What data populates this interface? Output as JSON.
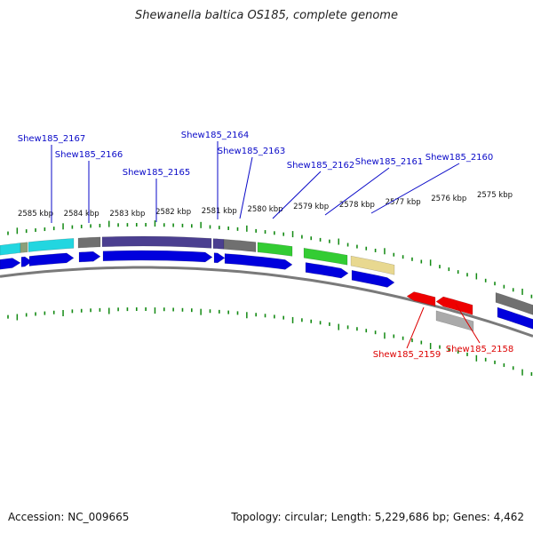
{
  "title": "Shewanella baltica OS185, complete genome",
  "footer": {
    "accession": "Accession: NC_009665",
    "stats": "Topology: circular; Length: 5,229,686 bp; Genes: 4,462"
  },
  "colors": {
    "forward_label": "#0a0ac8",
    "reverse_label": "#dd0000",
    "tick": "#138a13",
    "backbone": "#7a7a7a"
  },
  "kbp_labels": [
    {
      "text": "2585 kbp",
      "kbp": 2585
    },
    {
      "text": "2584 kbp",
      "kbp": 2584
    },
    {
      "text": "2583 kbp",
      "kbp": 2583
    },
    {
      "text": "2582 kbp",
      "kbp": 2582
    },
    {
      "text": "2581 kbp",
      "kbp": 2581
    },
    {
      "text": "2580 kbp",
      "kbp": 2580
    },
    {
      "text": "2579 kbp",
      "kbp": 2579
    },
    {
      "text": "2578 kbp",
      "kbp": 2578
    },
    {
      "text": "2577 kbp",
      "kbp": 2577
    },
    {
      "text": "2576 kbp",
      "kbp": 2576
    },
    {
      "text": "2575 kbp",
      "kbp": 2575
    }
  ],
  "gene_labels_forward": [
    {
      "text": "Shew185_2167"
    },
    {
      "text": "Shew185_2166"
    },
    {
      "text": "Shew185_2165"
    },
    {
      "text": "Shew185_2164"
    },
    {
      "text": "Shew185_2163"
    },
    {
      "text": "Shew185_2162"
    },
    {
      "text": "Shew185_2161"
    },
    {
      "text": "Shew185_2160"
    }
  ],
  "gene_labels_reverse": [
    {
      "text": "Shew185_2159"
    },
    {
      "text": "Shew185_2158"
    }
  ]
}
